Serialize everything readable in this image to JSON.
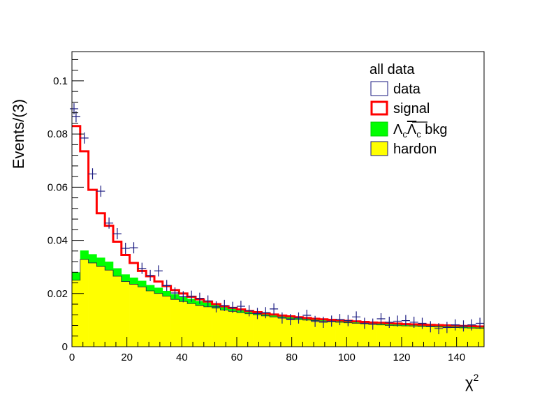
{
  "chart_data": {
    "type": "histogram",
    "ylabel": "Events/(3)",
    "xlabel": "χ",
    "xlabel_sup": "2",
    "xlim": [
      0,
      150
    ],
    "ylim": [
      0,
      0.111
    ],
    "xticks": [
      0,
      20,
      40,
      60,
      80,
      100,
      120,
      140
    ],
    "yticks": [
      0,
      0.02,
      0.04,
      0.06,
      0.08,
      0.1
    ],
    "xtick_labels": [
      "0",
      "20",
      "40",
      "60",
      "80",
      "100",
      "120",
      "140"
    ],
    "ytick_labels": [
      "0",
      "0.02",
      "0.04",
      "0.06",
      "0.08",
      "0.1"
    ],
    "bin_width": 3,
    "legend": {
      "title": "all data",
      "placement": "top-right",
      "entries": [
        {
          "key": "data",
          "label": "data"
        },
        {
          "key": "signal",
          "label": "signal"
        },
        {
          "key": "lclc",
          "label_parts": [
            "Λ",
            "c",
            "Λ",
            "c",
            " bkg"
          ]
        },
        {
          "key": "hadron",
          "label": "hardon"
        }
      ]
    },
    "colors": {
      "data": "#1a1a80",
      "signal": "#ff0000",
      "lclc": "#00ff00",
      "hadron": "#ffff00"
    },
    "series": [
      {
        "key": "hadron",
        "type": "filled-histogram",
        "values": [
          0.025,
          0.0328,
          0.0315,
          0.0302,
          0.0288,
          0.0265,
          0.0245,
          0.0235,
          0.0225,
          0.021,
          0.02,
          0.019,
          0.0178,
          0.017,
          0.0162,
          0.0155,
          0.015,
          0.0145,
          0.0138,
          0.0133,
          0.0128,
          0.0124,
          0.012,
          0.0116,
          0.0112,
          0.0108,
          0.0105,
          0.0102,
          0.01,
          0.0098,
          0.0096,
          0.0094,
          0.0092,
          0.009,
          0.0088,
          0.0086,
          0.0084,
          0.0082,
          0.008,
          0.0079,
          0.0078,
          0.0077,
          0.0076,
          0.0075,
          0.0074,
          0.0073,
          0.0072,
          0.0071,
          0.007,
          0.0069
        ]
      },
      {
        "key": "lclc",
        "type": "stacked-histogram",
        "values": [
          0.028,
          0.0362,
          0.0348,
          0.0335,
          0.032,
          0.0295,
          0.0272,
          0.026,
          0.0248,
          0.0232,
          0.0222,
          0.021,
          0.0198,
          0.0188,
          0.018,
          0.0172,
          0.0166,
          0.016,
          0.0153,
          0.0147,
          0.0142,
          0.0137,
          0.0133,
          0.0129,
          0.0124,
          0.012,
          0.0117,
          0.0114,
          0.0111,
          0.0108,
          0.0106,
          0.0104,
          0.0102,
          0.01,
          0.0098,
          0.0096,
          0.0094,
          0.0092,
          0.009,
          0.0088,
          0.0087,
          0.0086,
          0.0085,
          0.0084,
          0.0082,
          0.0081,
          0.008,
          0.0079,
          0.0078,
          0.0077
        ]
      },
      {
        "key": "signal",
        "type": "step-line",
        "values": [
          0.083,
          0.0735,
          0.059,
          0.0502,
          0.0455,
          0.0395,
          0.0345,
          0.0315,
          0.0285,
          0.0265,
          0.0245,
          0.0228,
          0.0213,
          0.02,
          0.0188,
          0.0178,
          0.017,
          0.016,
          0.0152,
          0.0146,
          0.014,
          0.0134,
          0.013,
          0.0125,
          0.0121,
          0.0117,
          0.0114,
          0.0111,
          0.0108,
          0.0105,
          0.0103,
          0.0101,
          0.0099,
          0.0097,
          0.0095,
          0.0093,
          0.0091,
          0.009,
          0.0088,
          0.0087,
          0.0085,
          0.0084,
          0.0083,
          0.0082,
          0.0081,
          0.008,
          0.0079,
          0.0078,
          0.0077,
          0.0076
        ]
      },
      {
        "key": "data",
        "type": "points",
        "x": [
          0.75,
          1.5,
          4.5,
          7.5,
          10.5,
          13.5,
          16.5,
          19.5,
          22.5,
          25.5,
          28.5,
          31.5,
          34.5,
          37.5,
          40.5,
          43.5,
          46.5,
          49.5,
          52.5,
          55.5,
          58.5,
          61.5,
          64.5,
          67.5,
          70.5,
          73.5,
          76.5,
          79.5,
          82.5,
          85.5,
          88.5,
          91.5,
          94.5,
          97.5,
          100.5,
          103.5,
          106.5,
          109.5,
          112.5,
          115.5,
          118.5,
          121.5,
          124.5,
          127.5,
          130.5,
          133.5,
          136.5,
          139.5,
          142.5,
          145.5,
          148.5
        ],
        "y": [
          0.0895,
          0.0865,
          0.0785,
          0.065,
          0.0585,
          0.0465,
          0.0425,
          0.037,
          0.0372,
          0.0295,
          0.0268,
          0.0285,
          0.023,
          0.0202,
          0.0188,
          0.019,
          0.0182,
          0.0172,
          0.015,
          0.0155,
          0.0148,
          0.0152,
          0.0135,
          0.0125,
          0.0128,
          0.0142,
          0.0108,
          0.0102,
          0.0108,
          0.0118,
          0.0095,
          0.0092,
          0.0096,
          0.0102,
          0.0098,
          0.0112,
          0.0088,
          0.0085,
          0.0105,
          0.0092,
          0.0096,
          0.0098,
          0.0092,
          0.0088,
          0.0075,
          0.0068,
          0.0072,
          0.0082,
          0.0078,
          0.0082,
          0.0088
        ]
      }
    ]
  }
}
